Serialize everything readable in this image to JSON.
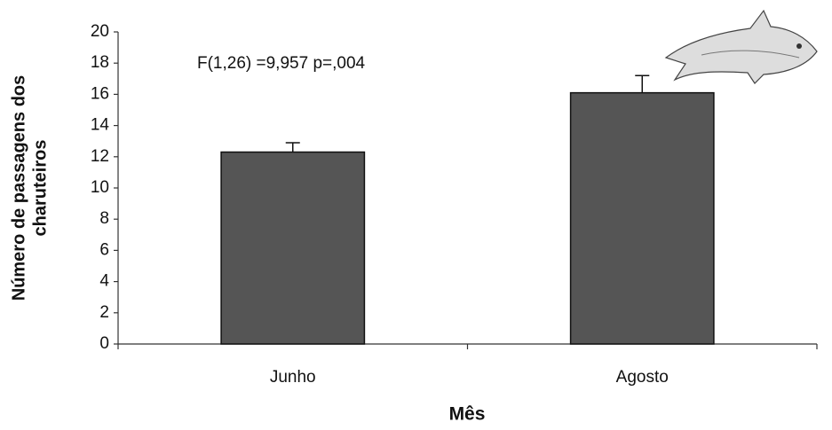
{
  "chart_data": {
    "type": "bar",
    "annotation": "F(1,26) =9,957 p=,004",
    "xlabel": "Mês",
    "ylabel": [
      "Número de passagens dos",
      "charuteiros"
    ],
    "categories": [
      "Junho",
      "Agosto"
    ],
    "values": [
      12.3,
      16.1
    ],
    "errors": [
      0.6,
      1.1
    ],
    "color": "#555555",
    "ylim": [
      0,
      20
    ],
    "yticks": [
      0,
      2,
      4,
      6,
      8,
      10,
      12,
      14,
      16,
      18,
      20
    ]
  }
}
